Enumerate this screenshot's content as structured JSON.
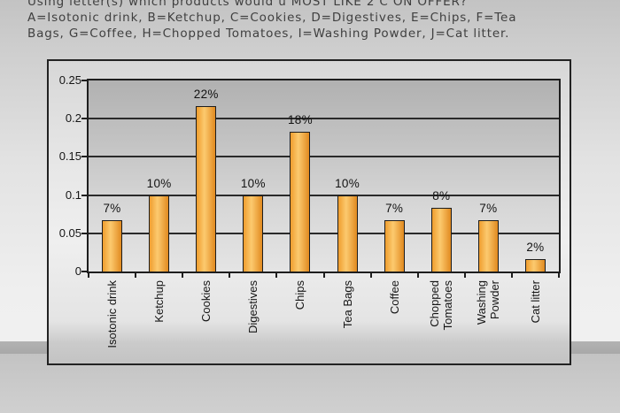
{
  "header": {
    "lines": [
      "Using letter(s) which products would u MOST LIKE 2 C ON OFFER?",
      "A=Isotonic drink, B=Ketchup, C=Cookies, D=Digestives, E=Chips, F=Tea",
      "Bags, G=Coffee, H=Chopped Tomatoes, I=Washing Powder, J=Cat litter."
    ]
  },
  "chart_data": {
    "type": "bar",
    "title": "",
    "categories": [
      "Isotonic drink",
      "Ketchup",
      "Cookies",
      "Digestives",
      "Chips",
      "Tea Bags",
      "Coffee",
      "Chopped Tomatoes",
      "Washing Powder",
      "Cat litter"
    ],
    "category_label_lines": [
      [
        "Isotonic drink"
      ],
      [
        "Ketchup"
      ],
      [
        "Cookies"
      ],
      [
        "Digestives"
      ],
      [
        "Chips"
      ],
      [
        "Tea Bags"
      ],
      [
        "Coffee"
      ],
      [
        "Chopped",
        "Tomatoes"
      ],
      [
        "Washing",
        "Powder"
      ],
      [
        "Cat litter"
      ]
    ],
    "values": [
      0.0667,
      0.1,
      0.2167,
      0.1,
      0.1833,
      0.1,
      0.0667,
      0.0833,
      0.0667,
      0.0167
    ],
    "bar_labels": [
      "7%",
      "10%",
      "22%",
      "10%",
      "18%",
      "10%",
      "7%",
      "8%",
      "7%",
      "2%"
    ],
    "xlabel": "",
    "ylabel": "",
    "ylim": [
      0,
      0.25
    ],
    "yticks": [
      0,
      0.05,
      0.1,
      0.15,
      0.2,
      0.25
    ],
    "ytick_labels": [
      "0",
      "0.05",
      "0.1",
      "0.15",
      "0.2",
      "0.25"
    ],
    "grid": true,
    "legend": false,
    "colors": {
      "bar_gradient_left": "#ef9d2e",
      "bar_gradient_light": "#fcca6f",
      "bar_gradient_right": "#e18a20",
      "bar_border": "#1d1d1d",
      "plot_bg_top": "#b1b1b1",
      "plot_bg_bottom": "#e4e4e4",
      "axis": "#1e1e1e"
    }
  }
}
